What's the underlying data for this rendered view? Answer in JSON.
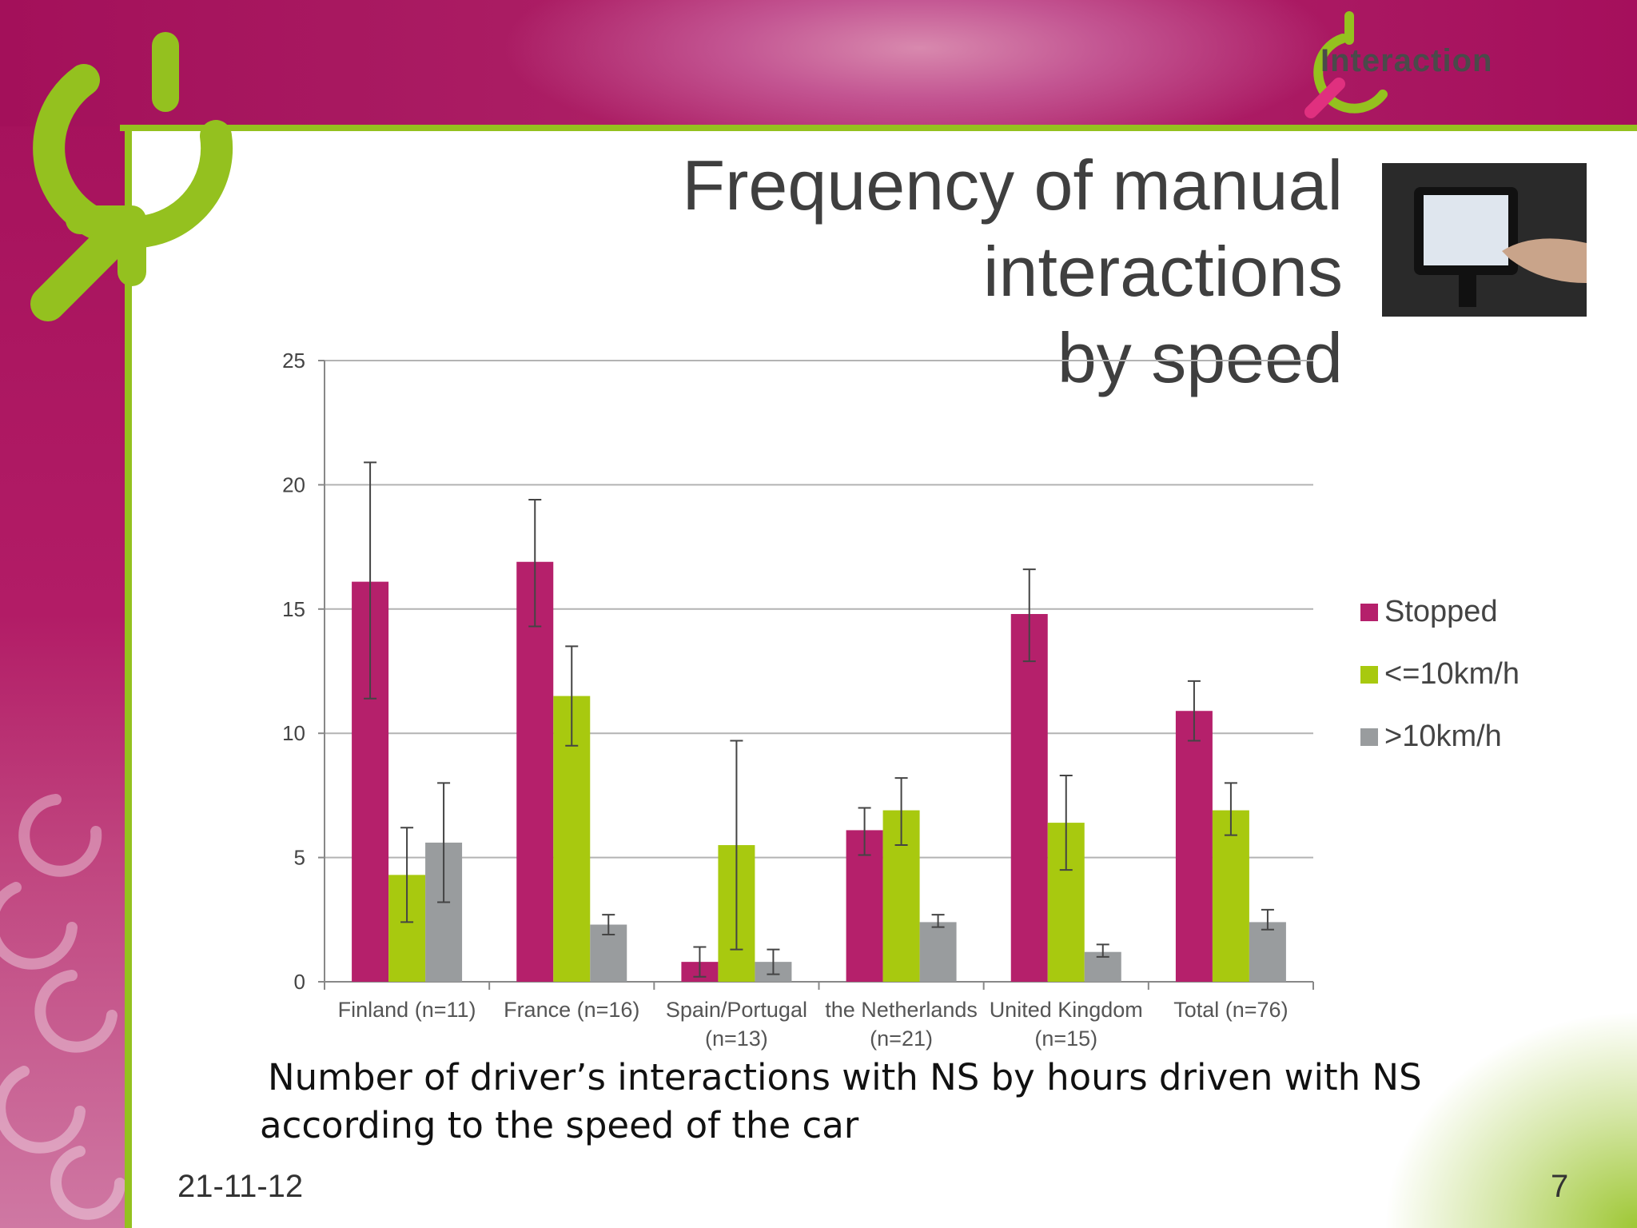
{
  "slide": {
    "title_line1": "Frequency of manual interactions",
    "title_line2": "by speed",
    "logo_text": "Interaction",
    "caption_line1": "Number of driver’s interactions with NS by hours driven with NS",
    "caption_line2": "according to the speed of the car",
    "date": "21-11-12",
    "page_number": "7"
  },
  "colors": {
    "header": "#a3105a",
    "accent_green": "#94c11f",
    "stopped": "#b5206b",
    "slow": "#a8c90f",
    "fast": "#999c9e"
  },
  "chart_data": {
    "type": "bar",
    "title": "",
    "xlabel": "",
    "ylabel": "",
    "ylim": [
      0,
      25
    ],
    "yticks": [
      0,
      5,
      10,
      15,
      20,
      25
    ],
    "grid": true,
    "legend_position": "right",
    "categories": [
      [
        "Finland (n=11)"
      ],
      [
        "France (n=16)"
      ],
      [
        "Spain/Portugal",
        "(n=13)"
      ],
      [
        "the Netherlands",
        "(n=21)"
      ],
      [
        "United Kingdom",
        "(n=15)"
      ],
      [
        "Total (n=76)"
      ]
    ],
    "series": [
      {
        "name": "Stopped",
        "color": "#b5206b",
        "values": [
          16.1,
          16.9,
          0.8,
          6.1,
          14.8,
          10.9
        ],
        "error_low": [
          11.4,
          14.3,
          0.2,
          5.1,
          12.9,
          9.7
        ],
        "error_high": [
          20.9,
          19.4,
          1.4,
          7.0,
          16.6,
          12.1
        ]
      },
      {
        "name": "<=10km/h",
        "color": "#a8c90f",
        "values": [
          4.3,
          11.5,
          5.5,
          6.9,
          6.4,
          6.9
        ],
        "error_low": [
          2.4,
          9.5,
          1.3,
          5.5,
          4.5,
          5.9
        ],
        "error_high": [
          6.2,
          13.5,
          9.7,
          8.2,
          8.3,
          8.0
        ]
      },
      {
        "name": ">10km/h",
        "color": "#999c9e",
        "values": [
          5.6,
          2.3,
          0.8,
          2.4,
          1.2,
          2.4
        ],
        "error_low": [
          3.2,
          1.9,
          0.3,
          2.2,
          1.0,
          2.1
        ],
        "error_high": [
          8.0,
          2.7,
          1.3,
          2.7,
          1.5,
          2.9
        ]
      }
    ]
  }
}
